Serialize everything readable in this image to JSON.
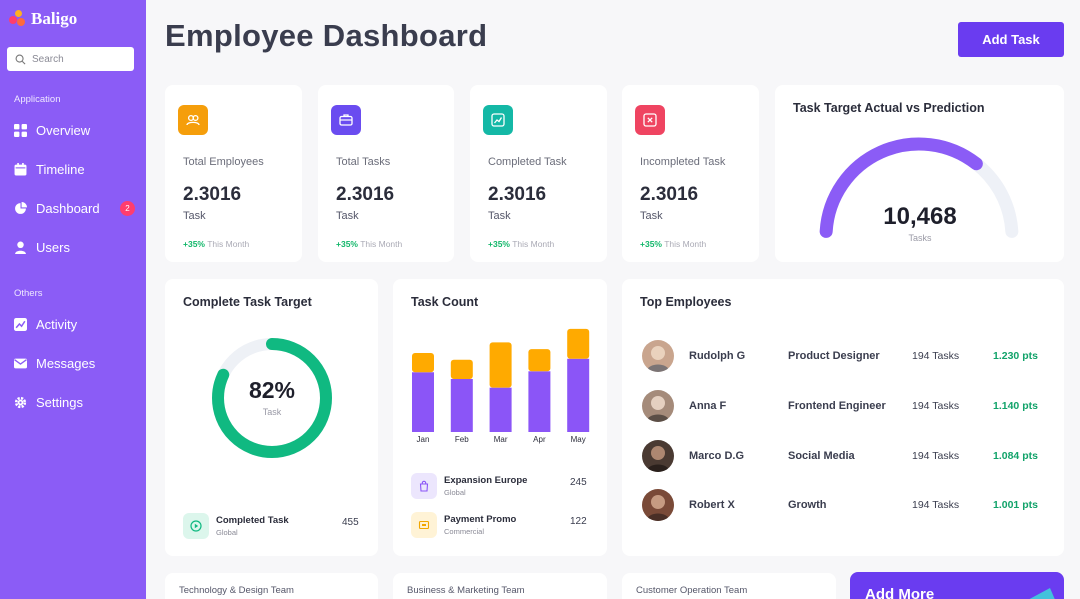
{
  "brand": {
    "name": "Baligo"
  },
  "search": {
    "placeholder": "Search"
  },
  "sidebar": {
    "sections": [
      "Application",
      "Others"
    ],
    "items": [
      {
        "label": "Overview",
        "icon": "grid-icon"
      },
      {
        "label": "Timeline",
        "icon": "calendar-icon"
      },
      {
        "label": "Dashboard",
        "icon": "pie-chart-icon",
        "badge": "2"
      },
      {
        "label": "Users",
        "icon": "user-icon"
      },
      {
        "label": "Activity",
        "icon": "activity-icon"
      },
      {
        "label": "Messages",
        "icon": "mail-icon"
      },
      {
        "label": "Settings",
        "icon": "gear-icon"
      }
    ]
  },
  "header": {
    "title": "Employee Dashboard",
    "add_task_label": "Add Task"
  },
  "stats": [
    {
      "label": "Total Employees",
      "value": "2.3016",
      "unit": "Task",
      "trend": "+35%",
      "trend_text": "This Month",
      "icon": "users-icon",
      "color": "#f59e0b"
    },
    {
      "label": "Total Tasks",
      "value": "2.3016",
      "unit": "Task",
      "trend": "+35%",
      "trend_text": "This Month",
      "icon": "briefcase-icon",
      "color": "#6a4cf0"
    },
    {
      "label": "Completed Task",
      "value": "2.3016",
      "unit": "Task",
      "trend": "+35%",
      "trend_text": "This Month",
      "icon": "trend-up-icon",
      "color": "#14b8a6"
    },
    {
      "label": "Incompleted Task",
      "value": "2.3016",
      "unit": "Task",
      "trend": "+35%",
      "trend_text": "This Month",
      "icon": "close-icon",
      "color": "#ef4461"
    }
  ],
  "gauge": {
    "title": "Task Target Actual vs Prediction",
    "value": "10,468",
    "unit": "Tasks",
    "fraction": 0.72,
    "color": "#8b5cf6",
    "track_color": "#eef1f7"
  },
  "complete_target": {
    "title": "Complete Task Target",
    "percent": 82,
    "percent_label": "82%",
    "sub": "Task",
    "color": "#10b981",
    "track_color": "#eef1f6",
    "row": {
      "title": "Completed Task",
      "sub": "Global",
      "value": "455",
      "icon": "play-icon"
    }
  },
  "task_count": {
    "title": "Task Count",
    "rows": [
      {
        "title": "Expansion Europe",
        "sub": "Global",
        "value": "245",
        "icon": "bag-icon"
      },
      {
        "title": "Payment Promo",
        "sub": "Commercial",
        "value": "122",
        "icon": "card-icon"
      }
    ]
  },
  "chart_data": {
    "type": "bar",
    "stacked": true,
    "categories": [
      "Jan",
      "Feb",
      "Mar",
      "Apr",
      "May"
    ],
    "series": [
      {
        "values": [
          62,
          55,
          46,
          63,
          76
        ],
        "color": "#8b55f7"
      },
      {
        "values": [
          20,
          20,
          47,
          23,
          31
        ],
        "color": "#ffaa00"
      }
    ],
    "ylim": [
      0,
      110
    ],
    "grid": false,
    "title": ""
  },
  "top_employees": {
    "title": "Top Employees",
    "rows": [
      {
        "name": "Rudolph G",
        "role": "Product Designer",
        "tasks": "194 Tasks",
        "points": "1.230 pts",
        "avatar_color": "#c9a58e"
      },
      {
        "name": "Anna F",
        "role": "Frontend Engineer",
        "tasks": "194 Tasks",
        "points": "1.140 pts",
        "avatar_color": "#a58b7a"
      },
      {
        "name": "Marco D.G",
        "role": "Social Media",
        "tasks": "194 Tasks",
        "points": "1.084 pts",
        "avatar_color": "#4a3a32"
      },
      {
        "name": "Robert X",
        "role": "Growth",
        "tasks": "194 Tasks",
        "points": "1.001 pts",
        "avatar_color": "#7a4a38"
      }
    ]
  },
  "teams": [
    "Technology & Design Team",
    "Business & Marketing Team",
    "Customer Operation Team"
  ],
  "add_more": {
    "label": "Add More"
  }
}
